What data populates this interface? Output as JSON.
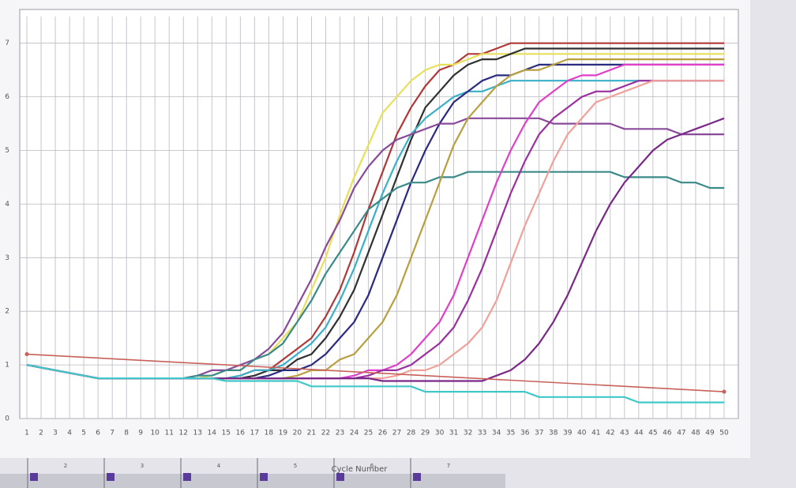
{
  "chart_data": {
    "type": "line",
    "xlabel": "Cycle Number",
    "x": [
      1,
      2,
      3,
      4,
      5,
      6,
      7,
      8,
      9,
      10,
      11,
      12,
      13,
      14,
      15,
      16,
      17,
      18,
      19,
      20,
      21,
      22,
      23,
      24,
      25,
      26,
      27,
      28,
      29,
      30,
      31,
      32,
      33,
      34,
      35,
      36,
      37,
      38,
      39,
      40,
      41,
      42,
      43,
      44,
      45,
      46,
      47,
      48,
      49,
      50
    ],
    "xlim": [
      0.5,
      51
    ],
    "xticks": [
      1,
      2,
      3,
      4,
      5,
      6,
      7,
      8,
      9,
      10,
      11,
      12,
      13,
      14,
      15,
      16,
      17,
      18,
      19,
      20,
      21,
      22,
      23,
      24,
      25,
      26,
      27,
      28,
      29,
      30,
      31,
      32,
      33,
      34,
      35,
      36,
      37,
      38,
      39,
      40,
      41,
      42,
      43,
      44,
      45,
      46,
      47,
      48,
      49,
      50
    ],
    "ylim": [
      0,
      7.5
    ],
    "yticks": [
      0,
      1,
      2,
      3,
      4,
      5,
      6,
      7
    ],
    "grid": true,
    "threshold": [
      1.2,
      0.5
    ],
    "threshold_color": "#c8605a",
    "series": [
      {
        "color": "#b03838",
        "values": [
          1.0,
          0.95,
          0.9,
          0.85,
          0.8,
          0.75,
          0.75,
          0.75,
          0.75,
          0.75,
          0.75,
          0.75,
          0.75,
          0.75,
          0.75,
          0.8,
          0.9,
          0.9,
          1.1,
          1.3,
          1.5,
          1.9,
          2.4,
          3.1,
          3.9,
          4.6,
          5.3,
          5.8,
          6.2,
          6.5,
          6.6,
          6.8,
          6.8,
          6.9,
          7.0,
          7.0,
          7.0,
          7.0,
          7.0,
          7.0,
          7.0,
          7.0,
          7.0,
          7.0,
          7.0,
          7.0,
          7.0,
          7.0,
          7.0,
          7.0
        ]
      },
      {
        "color": "#e6e05a",
        "values": [
          1.0,
          0.95,
          0.9,
          0.85,
          0.8,
          0.75,
          0.75,
          0.75,
          0.75,
          0.75,
          0.75,
          0.75,
          0.75,
          0.8,
          0.9,
          0.9,
          1.1,
          1.2,
          1.5,
          1.8,
          2.4,
          3.0,
          3.8,
          4.5,
          5.1,
          5.7,
          6.0,
          6.3,
          6.5,
          6.6,
          6.6,
          6.7,
          6.8,
          6.8,
          6.8,
          6.8,
          6.8,
          6.8,
          6.8,
          6.8,
          6.8,
          6.8,
          6.8,
          6.8,
          6.8,
          6.8,
          6.8,
          6.8,
          6.8,
          6.8
        ]
      },
      {
        "color": "#303030",
        "values": [
          1.0,
          0.95,
          0.9,
          0.85,
          0.8,
          0.75,
          0.75,
          0.75,
          0.75,
          0.75,
          0.75,
          0.75,
          0.75,
          0.75,
          0.75,
          0.75,
          0.8,
          0.9,
          0.9,
          1.1,
          1.2,
          1.5,
          1.9,
          2.4,
          3.1,
          3.8,
          4.5,
          5.2,
          5.8,
          6.1,
          6.4,
          6.6,
          6.7,
          6.7,
          6.8,
          6.9,
          6.9,
          6.9,
          6.9,
          6.9,
          6.9,
          6.9,
          6.9,
          6.9,
          6.9,
          6.9,
          6.9,
          6.9,
          6.9,
          6.9
        ]
      },
      {
        "color": "#3ab0c8",
        "values": [
          1.0,
          0.95,
          0.9,
          0.85,
          0.8,
          0.75,
          0.75,
          0.75,
          0.75,
          0.75,
          0.75,
          0.75,
          0.75,
          0.75,
          0.75,
          0.8,
          0.9,
          0.9,
          1.0,
          1.2,
          1.4,
          1.7,
          2.2,
          2.8,
          3.5,
          4.2,
          4.8,
          5.3,
          5.6,
          5.8,
          6.0,
          6.1,
          6.1,
          6.2,
          6.3,
          6.3,
          6.3,
          6.3,
          6.3,
          6.3,
          6.3,
          6.3,
          6.3,
          6.3,
          6.3,
          6.3,
          6.3,
          6.3,
          6.3,
          6.3
        ]
      },
      {
        "color": "#2a2a80",
        "values": [
          1.0,
          0.95,
          0.9,
          0.85,
          0.8,
          0.75,
          0.75,
          0.75,
          0.75,
          0.75,
          0.75,
          0.75,
          0.75,
          0.75,
          0.75,
          0.75,
          0.75,
          0.8,
          0.9,
          0.9,
          1.0,
          1.2,
          1.5,
          1.8,
          2.3,
          3.0,
          3.7,
          4.4,
          5.0,
          5.5,
          5.9,
          6.1,
          6.3,
          6.4,
          6.4,
          6.5,
          6.6,
          6.6,
          6.6,
          6.6,
          6.6,
          6.6,
          6.6,
          6.6,
          6.6,
          6.6,
          6.6,
          6.6,
          6.6,
          6.6
        ]
      },
      {
        "color": "#8a4a9a",
        "values": [
          1.0,
          0.95,
          0.9,
          0.85,
          0.8,
          0.75,
          0.75,
          0.75,
          0.75,
          0.75,
          0.75,
          0.75,
          0.8,
          0.9,
          0.9,
          1.0,
          1.1,
          1.3,
          1.6,
          2.1,
          2.6,
          3.2,
          3.7,
          4.3,
          4.7,
          5.0,
          5.2,
          5.3,
          5.4,
          5.5,
          5.5,
          5.6,
          5.6,
          5.6,
          5.6,
          5.6,
          5.6,
          5.5,
          5.5,
          5.5,
          5.5,
          5.5,
          5.4,
          5.4,
          5.4,
          5.4,
          5.3,
          5.3,
          5.3,
          5.3
        ]
      },
      {
        "color": "#3a8a88",
        "values": [
          1.0,
          0.95,
          0.9,
          0.85,
          0.8,
          0.75,
          0.75,
          0.75,
          0.75,
          0.75,
          0.75,
          0.75,
          0.8,
          0.8,
          0.9,
          0.9,
          1.1,
          1.2,
          1.4,
          1.8,
          2.2,
          2.7,
          3.1,
          3.5,
          3.9,
          4.1,
          4.3,
          4.4,
          4.4,
          4.5,
          4.5,
          4.6,
          4.6,
          4.6,
          4.6,
          4.6,
          4.6,
          4.6,
          4.6,
          4.6,
          4.6,
          4.6,
          4.5,
          4.5,
          4.5,
          4.5,
          4.4,
          4.4,
          4.3,
          4.3
        ]
      },
      {
        "color": "#b8a040",
        "values": [
          1.0,
          0.95,
          0.9,
          0.85,
          0.8,
          0.75,
          0.75,
          0.75,
          0.75,
          0.75,
          0.75,
          0.75,
          0.75,
          0.75,
          0.75,
          0.75,
          0.75,
          0.75,
          0.75,
          0.8,
          0.9,
          0.9,
          1.1,
          1.2,
          1.5,
          1.8,
          2.3,
          3.0,
          3.7,
          4.4,
          5.1,
          5.6,
          5.9,
          6.2,
          6.4,
          6.5,
          6.5,
          6.6,
          6.7,
          6.7,
          6.7,
          6.7,
          6.7,
          6.7,
          6.7,
          6.7,
          6.7,
          6.7,
          6.7,
          6.7
        ]
      },
      {
        "color": "#e040c8",
        "values": [
          1.0,
          0.95,
          0.9,
          0.85,
          0.8,
          0.75,
          0.75,
          0.75,
          0.75,
          0.75,
          0.75,
          0.75,
          0.75,
          0.75,
          0.75,
          0.75,
          0.75,
          0.75,
          0.75,
          0.75,
          0.75,
          0.75,
          0.75,
          0.8,
          0.9,
          0.9,
          1.0,
          1.2,
          1.5,
          1.8,
          2.3,
          3.0,
          3.7,
          4.4,
          5.0,
          5.5,
          5.9,
          6.1,
          6.3,
          6.4,
          6.4,
          6.5,
          6.6,
          6.6,
          6.6,
          6.6,
          6.6,
          6.6,
          6.6,
          6.6
        ]
      },
      {
        "color": "#9a30a0",
        "values": [
          1.0,
          0.95,
          0.9,
          0.85,
          0.8,
          0.75,
          0.75,
          0.75,
          0.75,
          0.75,
          0.75,
          0.75,
          0.75,
          0.75,
          0.75,
          0.75,
          0.75,
          0.75,
          0.75,
          0.75,
          0.75,
          0.75,
          0.75,
          0.75,
          0.8,
          0.9,
          0.9,
          1.0,
          1.2,
          1.4,
          1.7,
          2.2,
          2.8,
          3.5,
          4.2,
          4.8,
          5.3,
          5.6,
          5.8,
          6.0,
          6.1,
          6.1,
          6.2,
          6.3,
          6.3,
          6.3,
          6.3,
          6.3,
          6.3,
          6.3
        ]
      },
      {
        "color": "#f0a098",
        "values": [
          1.0,
          0.95,
          0.9,
          0.85,
          0.8,
          0.75,
          0.75,
          0.75,
          0.75,
          0.75,
          0.75,
          0.75,
          0.75,
          0.75,
          0.75,
          0.75,
          0.75,
          0.75,
          0.75,
          0.75,
          0.75,
          0.75,
          0.75,
          0.75,
          0.75,
          0.75,
          0.8,
          0.9,
          0.9,
          1.0,
          1.2,
          1.4,
          1.7,
          2.2,
          2.9,
          3.6,
          4.2,
          4.8,
          5.3,
          5.6,
          5.9,
          6.0,
          6.1,
          6.2,
          6.3,
          6.3,
          6.3,
          6.3,
          6.3,
          6.3
        ]
      },
      {
        "color": "#7a2888",
        "values": [
          1.0,
          0.95,
          0.9,
          0.85,
          0.8,
          0.75,
          0.75,
          0.75,
          0.75,
          0.75,
          0.75,
          0.75,
          0.75,
          0.75,
          0.75,
          0.75,
          0.75,
          0.75,
          0.75,
          0.75,
          0.75,
          0.75,
          0.75,
          0.75,
          0.75,
          0.7,
          0.7,
          0.7,
          0.7,
          0.7,
          0.7,
          0.7,
          0.7,
          0.8,
          0.9,
          1.1,
          1.4,
          1.8,
          2.3,
          2.9,
          3.5,
          4.0,
          4.4,
          4.7,
          5.0,
          5.2,
          5.3,
          5.4,
          5.5,
          5.6
        ]
      },
      {
        "color": "#40c8c8",
        "values": [
          1.0,
          0.95,
          0.9,
          0.85,
          0.8,
          0.75,
          0.75,
          0.75,
          0.75,
          0.75,
          0.75,
          0.75,
          0.75,
          0.75,
          0.7,
          0.7,
          0.7,
          0.7,
          0.7,
          0.7,
          0.6,
          0.6,
          0.6,
          0.6,
          0.6,
          0.6,
          0.6,
          0.6,
          0.5,
          0.5,
          0.5,
          0.5,
          0.5,
          0.5,
          0.5,
          0.5,
          0.4,
          0.4,
          0.4,
          0.4,
          0.4,
          0.4,
          0.4,
          0.3,
          0.3,
          0.3,
          0.3,
          0.3,
          0.3,
          0.3
        ]
      }
    ]
  },
  "strip": {
    "labels": [
      "2",
      "3",
      "4",
      "5",
      "6",
      "7"
    ]
  }
}
